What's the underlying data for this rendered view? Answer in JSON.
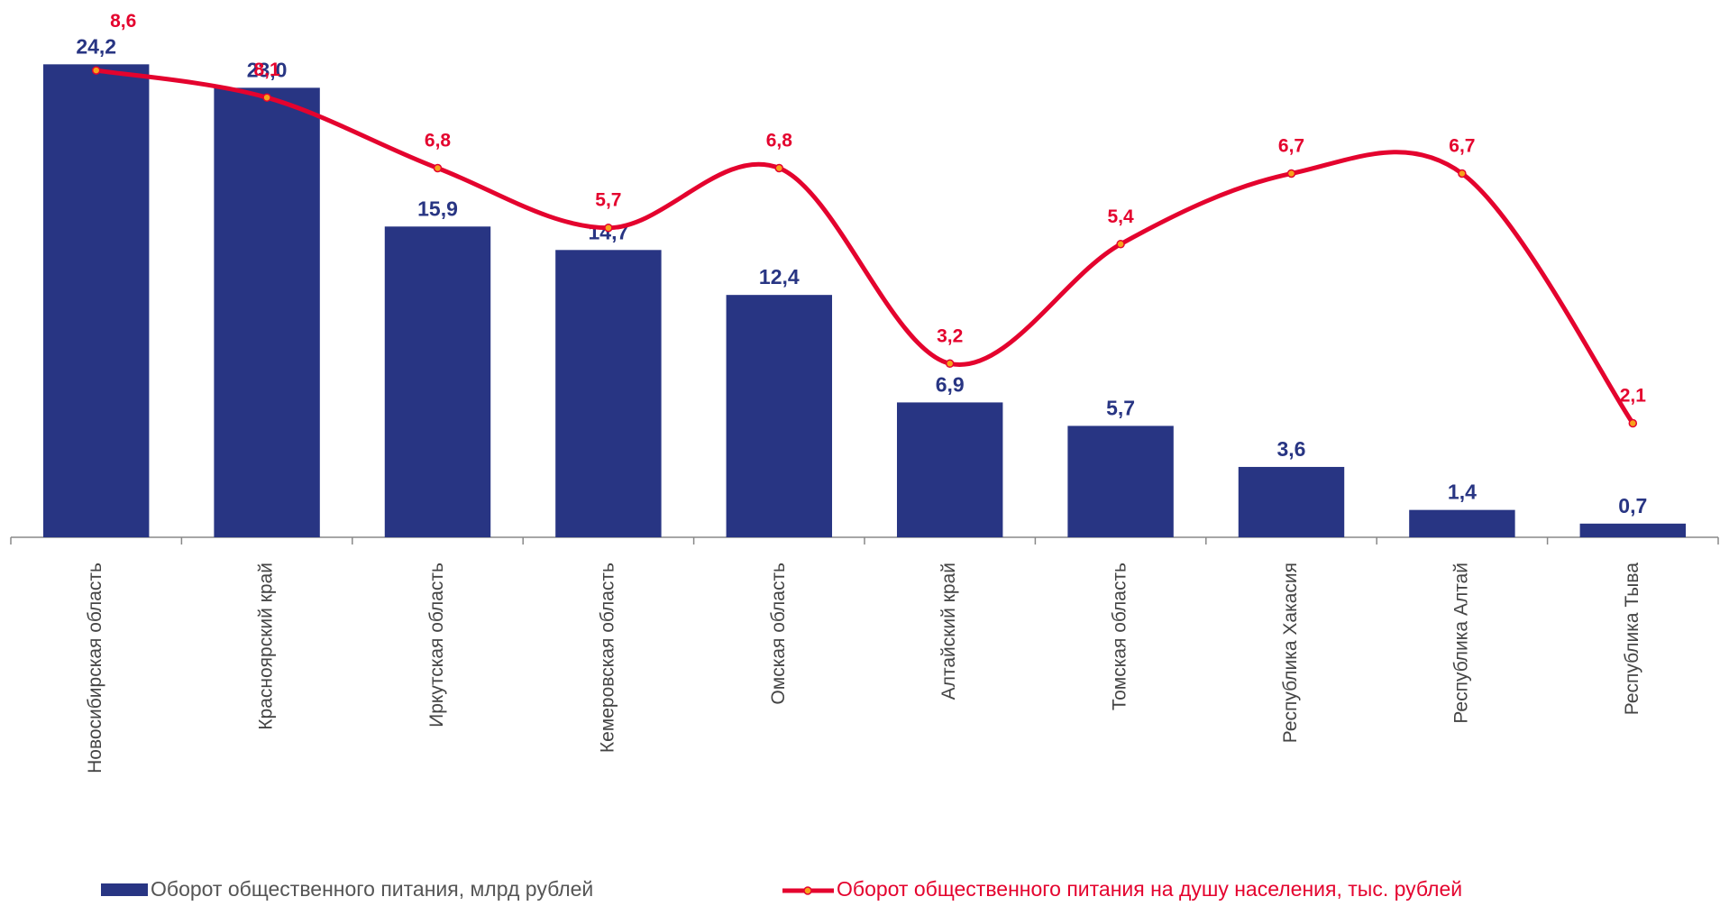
{
  "chart_data": {
    "type": "bar_line",
    "categories": [
      "Новосибирская область",
      "Красноярский край",
      "Иркутская область",
      "Кемеровская область",
      "Омская область",
      "Алтайский край",
      "Томская область",
      "Республика Хакасия",
      "Республика Алтай",
      "Республика Тыва"
    ],
    "ylim": [
      0,
      25
    ],
    "y2lim": [
      0,
      9
    ],
    "legend": "bottom",
    "series": [
      {
        "name": "Оборот общественного питания, млрд рублей",
        "type": "bar",
        "color": "#283583",
        "values": [
          24.2,
          23.0,
          15.9,
          14.7,
          12.4,
          6.9,
          5.7,
          3.6,
          1.4,
          0.7
        ],
        "value_labels": [
          "24,2",
          "23,0",
          "15,9",
          "14,7",
          "12,4",
          "6,9",
          "5,7",
          "3,6",
          "1,4",
          "0,7"
        ]
      },
      {
        "name": "Оборот общественного питания на душу населения, тыс. рублей",
        "type": "line",
        "axis": "y2",
        "color": "#e4032e",
        "values": [
          8.6,
          8.1,
          6.8,
          5.7,
          6.8,
          3.2,
          5.4,
          6.7,
          6.7,
          2.1
        ],
        "value_labels": [
          "8,6",
          "8,1",
          "6,8",
          "5,7",
          "6,8",
          "3,2",
          "5,4",
          "6,7",
          "6,7",
          "2,1"
        ]
      }
    ]
  }
}
